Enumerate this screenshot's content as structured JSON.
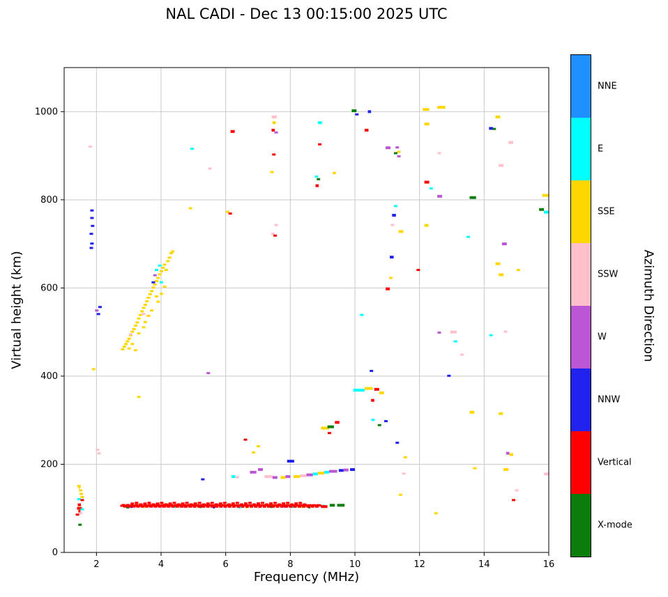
{
  "chart_data": {
    "type": "scatter",
    "title": "NAL CADI - Dec 13 00:15:00 2025 UTC",
    "xlabel": "Frequency (MHz)",
    "ylabel": "Virtual height (km)",
    "xlim": [
      1,
      16
    ],
    "ylim": [
      0,
      1100
    ],
    "xticks": [
      2,
      4,
      6,
      8,
      10,
      12,
      14,
      16
    ],
    "yticks": [
      0,
      200,
      400,
      600,
      800,
      1000
    ],
    "grid": true,
    "legend": {
      "title": "Azimuth Direction",
      "position": "right-colorbar",
      "entries": [
        {
          "label": "NNE",
          "color": "#1e90ff"
        },
        {
          "label": "E",
          "color": "#00ffff"
        },
        {
          "label": "SSE",
          "color": "#ffd700"
        },
        {
          "label": "SSW",
          "color": "#ffc0cb"
        },
        {
          "label": "W",
          "color": "#ba55d3"
        },
        {
          "label": "NNW",
          "color": "#2222ee"
        },
        {
          "label": "Vertical",
          "color": "#ff0000"
        },
        {
          "label": "X-mode",
          "color": "#0b7d0b"
        }
      ]
    },
    "code_map": {
      "N": "NNE",
      "E": "E",
      "S": "SSE",
      "P": "SSW",
      "W": "W",
      "B": "NNW",
      "V": "Vertical",
      "X": "X-mode"
    },
    "points": [
      [
        "S",
        1.45,
        150
      ],
      [
        "S",
        1.5,
        140
      ],
      [
        "S",
        1.52,
        132
      ],
      [
        "E",
        1.45,
        120
      ],
      [
        "V",
        1.55,
        118
      ],
      [
        "S",
        1.55,
        125
      ],
      [
        "E",
        1.55,
        97
      ],
      [
        "P",
        1.5,
        88
      ],
      [
        "V",
        1.4,
        85
      ],
      [
        "X",
        1.48,
        62
      ],
      [
        "P",
        1.8,
        920
      ],
      [
        "B",
        1.85,
        775
      ],
      [
        "B",
        1.85,
        758
      ],
      [
        "B",
        1.87,
        740
      ],
      [
        "B",
        1.83,
        722
      ],
      [
        "B",
        1.85,
        700
      ],
      [
        "B",
        1.83,
        690
      ],
      [
        "W",
        2.0,
        548
      ],
      [
        "B",
        2.05,
        540
      ],
      [
        "B",
        2.1,
        556
      ],
      [
        "S",
        1.9,
        415
      ],
      [
        "P",
        2.02,
        232
      ],
      [
        "P",
        2.07,
        224
      ],
      [
        "S",
        2.8,
        460
      ],
      [
        "S",
        2.85,
        466
      ],
      [
        "S",
        2.9,
        472
      ],
      [
        "S",
        2.95,
        478
      ],
      [
        "S",
        3.0,
        484
      ],
      [
        "S",
        3.0,
        462
      ],
      [
        "S",
        3.05,
        492
      ],
      [
        "S",
        3.1,
        500
      ],
      [
        "S",
        3.15,
        506
      ],
      [
        "S",
        3.2,
        514
      ],
      [
        "S",
        3.25,
        521
      ],
      [
        "S",
        3.3,
        530
      ],
      [
        "S",
        3.35,
        538
      ],
      [
        "S",
        3.4,
        546
      ],
      [
        "S",
        3.45,
        554
      ],
      [
        "S",
        3.5,
        561
      ],
      [
        "S",
        3.55,
        569
      ],
      [
        "S",
        3.6,
        577
      ],
      [
        "S",
        3.65,
        585
      ],
      [
        "S",
        3.7,
        592
      ],
      [
        "S",
        3.75,
        600
      ],
      [
        "S",
        3.8,
        607
      ],
      [
        "S",
        3.85,
        615
      ],
      [
        "S",
        3.9,
        622
      ],
      [
        "S",
        3.95,
        630
      ],
      [
        "S",
        4.0,
        637
      ],
      [
        "S",
        4.05,
        645
      ],
      [
        "S",
        4.1,
        652
      ],
      [
        "S",
        4.2,
        660
      ],
      [
        "S",
        4.25,
        668
      ],
      [
        "S",
        4.3,
        678
      ],
      [
        "S",
        3.1,
        472
      ],
      [
        "S",
        3.3,
        496
      ],
      [
        "S",
        3.5,
        522
      ],
      [
        "S",
        3.7,
        548
      ],
      [
        "S",
        3.9,
        568
      ],
      [
        "S",
        4.0,
        586
      ],
      [
        "S",
        4.1,
        602
      ],
      [
        "S",
        3.2,
        458
      ],
      [
        "S",
        3.6,
        536
      ],
      [
        "S",
        3.45,
        510
      ],
      [
        "S",
        3.85,
        580
      ],
      [
        "E",
        3.85,
        640
      ],
      [
        "E",
        3.95,
        650
      ],
      [
        "E",
        4.0,
        612
      ],
      [
        "P",
        3.05,
        494
      ],
      [
        "P",
        3.45,
        540
      ],
      [
        "W",
        3.8,
        628
      ],
      [
        "B",
        3.75,
        612
      ],
      [
        "S",
        4.15,
        640
      ],
      [
        "S",
        4.35,
        682
      ],
      [
        "B",
        5.28,
        165
      ],
      [
        "P",
        6.35,
        170
      ],
      [
        "V",
        6.6,
        255
      ],
      [
        "S",
        6.85,
        226
      ],
      [
        "S",
        7.0,
        240
      ],
      [
        "W",
        5.45,
        406
      ],
      [
        "S",
        3.3,
        352
      ],
      [
        "P",
        5.5,
        870
      ],
      [
        "E",
        4.95,
        915
      ],
      [
        "S",
        4.9,
        780
      ],
      [
        "S",
        6.05,
        772
      ],
      [
        "V",
        6.13,
        768
      ],
      [
        "V",
        7.48,
        902
      ],
      [
        "S",
        7.42,
        862
      ],
      [
        "P",
        7.55,
        742
      ],
      [
        "P",
        7.45,
        722
      ],
      [
        "V",
        7.52,
        718
      ],
      [
        "V",
        8.9,
        925
      ],
      [
        "E",
        8.8,
        852
      ],
      [
        "X",
        8.86,
        846
      ],
      [
        "S",
        9.35,
        860
      ],
      [
        "W",
        7.55,
        952
      ],
      [
        "B",
        10.05,
        993
      ],
      [
        "V",
        9.2,
        270
      ],
      [
        "B",
        10.5,
        411
      ],
      [
        "E",
        10.55,
        300
      ],
      [
        "X",
        10.75,
        288
      ],
      [
        "B",
        10.95,
        297
      ],
      [
        "E",
        10.2,
        538
      ],
      [
        "W",
        11.3,
        918
      ],
      [
        "S",
        11.35,
        908
      ],
      [
        "X",
        11.25,
        905
      ],
      [
        "W",
        11.35,
        898
      ],
      [
        "P",
        11.15,
        742
      ],
      [
        "S",
        11.1,
        622
      ],
      [
        "E",
        11.25,
        785
      ],
      [
        "V",
        11.95,
        640
      ],
      [
        "S",
        11.4,
        130
      ],
      [
        "P",
        11.5,
        178
      ],
      [
        "S",
        11.55,
        215
      ],
      [
        "B",
        11.3,
        248
      ],
      [
        "S",
        12.5,
        88
      ],
      [
        "P",
        12.6,
        905
      ],
      [
        "E",
        12.35,
        825
      ],
      [
        "E",
        13.1,
        478
      ],
      [
        "B",
        12.9,
        400
      ],
      [
        "P",
        13.3,
        448
      ],
      [
        "W",
        12.6,
        498
      ],
      [
        "E",
        13.5,
        715
      ],
      [
        "X",
        14.3,
        960
      ],
      [
        "P",
        14.65,
        500
      ],
      [
        "E",
        14.2,
        492
      ],
      [
        "S",
        13.7,
        190
      ],
      [
        "V",
        14.9,
        118
      ],
      [
        "P",
        15.0,
        140
      ],
      [
        "S",
        15.05,
        640
      ]
    ],
    "dashes": [
      [
        "V",
        1.4,
        1.55,
        100
      ],
      [
        "V",
        1.42,
        1.52,
        108
      ],
      [
        "V",
        1.44,
        1.5,
        93
      ],
      [
        "S",
        1.44,
        1.5,
        148
      ],
      [
        "X",
        2.92,
        3.02,
        103
      ],
      [
        "X",
        5.18,
        5.26,
        104
      ],
      [
        "X",
        7.38,
        7.46,
        104
      ],
      [
        "X",
        8.55,
        8.62,
        103
      ],
      [
        "X",
        9.22,
        9.38,
        107
      ],
      [
        "X",
        9.45,
        9.68,
        107
      ],
      [
        "E",
        4.38,
        4.45,
        104
      ],
      [
        "E",
        6.4,
        6.47,
        103
      ],
      [
        "E",
        8.02,
        8.1,
        104
      ],
      [
        "E",
        9.0,
        9.07,
        105
      ],
      [
        "S",
        3.42,
        3.5,
        104
      ],
      [
        "S",
        6.62,
        6.7,
        103
      ],
      [
        "S",
        8.3,
        8.37,
        104
      ],
      [
        "B",
        3.05,
        3.1,
        104
      ],
      [
        "B",
        5.6,
        5.66,
        103
      ],
      [
        "B",
        7.8,
        7.86,
        105
      ],
      [
        "P",
        4.0,
        4.06,
        104
      ],
      [
        "P",
        7.0,
        7.06,
        103
      ],
      [
        "W",
        4.7,
        4.76,
        104
      ],
      [
        "V",
        8.95,
        9.15,
        104
      ],
      [
        "E",
        6.18,
        6.3,
        172
      ],
      [
        "W",
        6.75,
        6.95,
        182
      ],
      [
        "W",
        7.0,
        7.15,
        188
      ],
      [
        "P",
        7.2,
        7.45,
        172
      ],
      [
        "W",
        7.45,
        7.6,
        170
      ],
      [
        "B",
        7.9,
        8.12,
        207
      ],
      [
        "S",
        7.7,
        7.85,
        170
      ],
      [
        "W",
        7.85,
        8.0,
        172
      ],
      [
        "S",
        8.1,
        8.3,
        172
      ],
      [
        "P",
        8.3,
        8.5,
        174
      ],
      [
        "W",
        8.5,
        8.7,
        176
      ],
      [
        "E",
        8.7,
        8.85,
        178
      ],
      [
        "S",
        8.85,
        9.05,
        180
      ],
      [
        "E",
        9.05,
        9.2,
        182
      ],
      [
        "W",
        9.2,
        9.45,
        184
      ],
      [
        "B",
        9.5,
        9.65,
        186
      ],
      [
        "W",
        9.65,
        9.8,
        187
      ],
      [
        "B",
        9.85,
        10.0,
        188
      ],
      [
        "S",
        8.95,
        9.2,
        282
      ],
      [
        "X",
        9.15,
        9.35,
        285
      ],
      [
        "V",
        9.38,
        9.52,
        295
      ],
      [
        "E",
        9.95,
        10.3,
        368
      ],
      [
        "S",
        10.3,
        10.55,
        372
      ],
      [
        "V",
        10.6,
        10.75,
        370
      ],
      [
        "S",
        10.75,
        10.9,
        362
      ],
      [
        "V",
        10.5,
        10.6,
        345
      ],
      [
        "B",
        10.4,
        10.5,
        1000
      ],
      [
        "V",
        10.3,
        10.42,
        958
      ],
      [
        "W",
        10.95,
        11.1,
        918
      ],
      [
        "B",
        11.15,
        11.27,
        765
      ],
      [
        "S",
        11.35,
        11.5,
        728
      ],
      [
        "B",
        11.08,
        11.2,
        670
      ],
      [
        "V",
        10.95,
        11.08,
        598
      ],
      [
        "S",
        12.1,
        12.3,
        1005
      ],
      [
        "S",
        12.55,
        12.8,
        1010
      ],
      [
        "S",
        12.15,
        12.3,
        972
      ],
      [
        "V",
        12.15,
        12.3,
        840
      ],
      [
        "W",
        12.55,
        12.7,
        808
      ],
      [
        "S",
        12.15,
        12.28,
        742
      ],
      [
        "P",
        12.95,
        13.15,
        500
      ],
      [
        "S",
        13.55,
        13.7,
        318
      ],
      [
        "X",
        13.55,
        13.75,
        805
      ],
      [
        "B",
        14.15,
        14.28,
        962
      ],
      [
        "S",
        14.35,
        14.5,
        988
      ],
      [
        "P",
        14.45,
        14.6,
        878
      ],
      [
        "P",
        14.75,
        14.9,
        930
      ],
      [
        "W",
        14.55,
        14.7,
        700
      ],
      [
        "S",
        14.35,
        14.5,
        655
      ],
      [
        "S",
        14.45,
        14.6,
        630
      ],
      [
        "S",
        14.45,
        14.58,
        315
      ],
      [
        "S",
        14.6,
        14.75,
        188
      ],
      [
        "W",
        14.68,
        14.78,
        225
      ],
      [
        "S",
        14.78,
        14.9,
        222
      ],
      [
        "S",
        15.8,
        16.0,
        810
      ],
      [
        "X",
        15.7,
        15.85,
        778
      ],
      [
        "E",
        15.85,
        16.0,
        772
      ],
      [
        "P",
        15.85,
        16.0,
        178
      ],
      [
        "P",
        7.42,
        7.58,
        988
      ],
      [
        "S",
        7.45,
        7.55,
        975
      ],
      [
        "V",
        7.42,
        7.52,
        958
      ],
      [
        "E",
        8.85,
        8.98,
        975
      ],
      [
        "X",
        9.9,
        10.05,
        1002
      ],
      [
        "V",
        8.78,
        8.88,
        832
      ],
      [
        "V",
        6.15,
        6.28,
        955
      ]
    ],
    "lines": [
      {
        "code": "V",
        "x1": 2.78,
        "x2": 8.92,
        "step": 0.045,
        "y": 105,
        "amp": 2
      },
      {
        "code": "V",
        "x1": 3.1,
        "x2": 8.5,
        "step": 0.13,
        "y": 110,
        "amp": 2
      }
    ]
  }
}
